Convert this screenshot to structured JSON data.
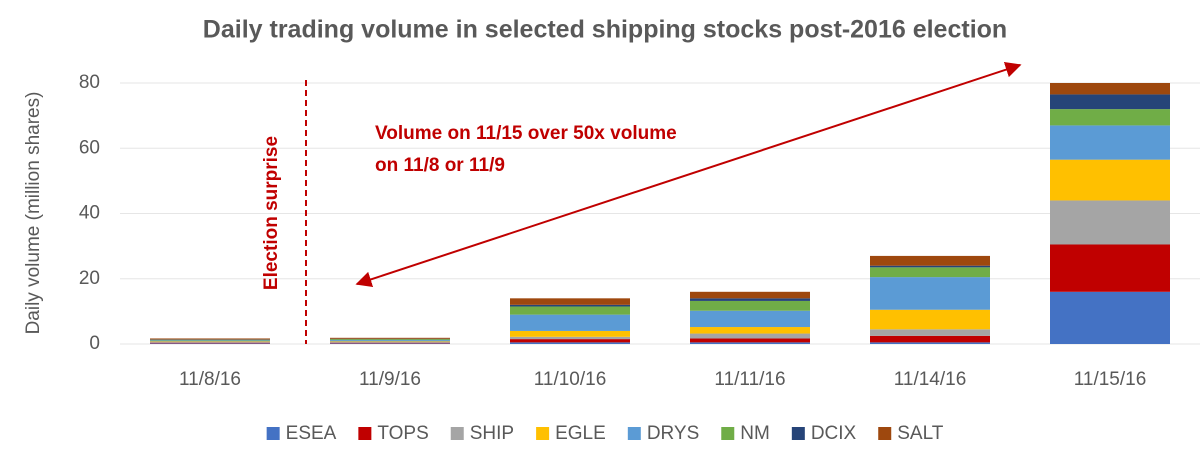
{
  "chart_data": {
    "type": "stacked-bar",
    "title": "Daily trading volume in selected shipping stocks post-2016 election",
    "y_label": "Daily volume (million shares)",
    "categories": [
      "11/8/16",
      "11/9/16",
      "11/10/16",
      "11/11/16",
      "11/14/16",
      "11/15/16"
    ],
    "series": [
      {
        "name": "ESEA",
        "color": "#4472c4",
        "values": [
          0.2,
          0.2,
          0.5,
          0.5,
          0.5,
          16
        ]
      },
      {
        "name": "TOPS",
        "color": "#c00000",
        "values": [
          0.2,
          0.2,
          1,
          1.2,
          2,
          14.5
        ]
      },
      {
        "name": "SHIP",
        "color": "#a5a5a5",
        "values": [
          0.2,
          0.2,
          0.7,
          1.5,
          2,
          13.5
        ]
      },
      {
        "name": "EGLE",
        "color": "#ffc000",
        "values": [
          0.2,
          0.2,
          1.8,
          2,
          6,
          12.5
        ]
      },
      {
        "name": "DRYS",
        "color": "#5b9bd5",
        "values": [
          0.3,
          0.4,
          5,
          5,
          10,
          10.5
        ]
      },
      {
        "name": "NM",
        "color": "#70ad47",
        "values": [
          0.2,
          0.3,
          2.5,
          3,
          3,
          5
        ]
      },
      {
        "name": "DCIX",
        "color": "#264478",
        "values": [
          0.1,
          0.1,
          0.5,
          0.8,
          0.5,
          4.5
        ]
      },
      {
        "name": "SALT",
        "color": "#9e480e",
        "values": [
          0.3,
          0.3,
          2,
          2,
          3,
          3.5
        ]
      }
    ],
    "ylim": [
      0,
      80
    ],
    "yticks": [
      0,
      20,
      40,
      60,
      80
    ],
    "grid": true,
    "legend": "bottom",
    "annotations": {
      "event": "Election surprise",
      "note": [
        "Volume on 11/15 over 50x volume",
        "on 11/8 or 11/9"
      ]
    }
  }
}
